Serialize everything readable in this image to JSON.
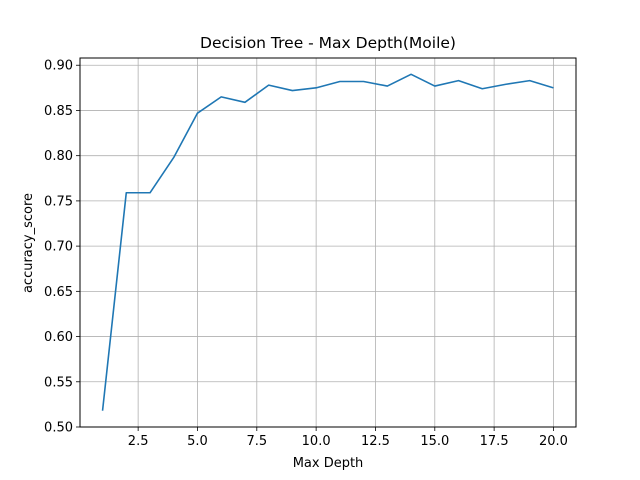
{
  "chart_data": {
    "type": "line",
    "title": "Decision Tree - Max Depth(Moile)",
    "xlabel": "Max Depth",
    "ylabel": "accuracy_score",
    "xlim": [
      0.05,
      20.95
    ],
    "ylim": [
      0.5,
      0.908
    ],
    "grid": true,
    "x_ticks": [
      2.5,
      5.0,
      7.5,
      10.0,
      12.5,
      15.0,
      17.5,
      20.0
    ],
    "x_tick_labels": [
      "2.5",
      "5.0",
      "7.5",
      "10.0",
      "12.5",
      "15.0",
      "17.5",
      "20.0"
    ],
    "y_ticks": [
      0.5,
      0.55,
      0.6,
      0.65,
      0.7,
      0.75,
      0.8,
      0.85,
      0.9
    ],
    "y_tick_labels": [
      "0.50",
      "0.55",
      "0.60",
      "0.65",
      "0.70",
      "0.75",
      "0.80",
      "0.85",
      "0.90"
    ],
    "series": [
      {
        "color": "#1f77b4",
        "x": [
          1,
          2,
          3,
          4,
          5,
          6,
          7,
          8,
          9,
          10,
          11,
          12,
          13,
          14,
          15,
          16,
          17,
          18,
          19,
          20
        ],
        "y": [
          0.518,
          0.759,
          0.759,
          0.798,
          0.847,
          0.865,
          0.859,
          0.878,
          0.872,
          0.875,
          0.882,
          0.882,
          0.877,
          0.89,
          0.877,
          0.883,
          0.874,
          0.879,
          0.883,
          0.875
        ]
      }
    ]
  }
}
